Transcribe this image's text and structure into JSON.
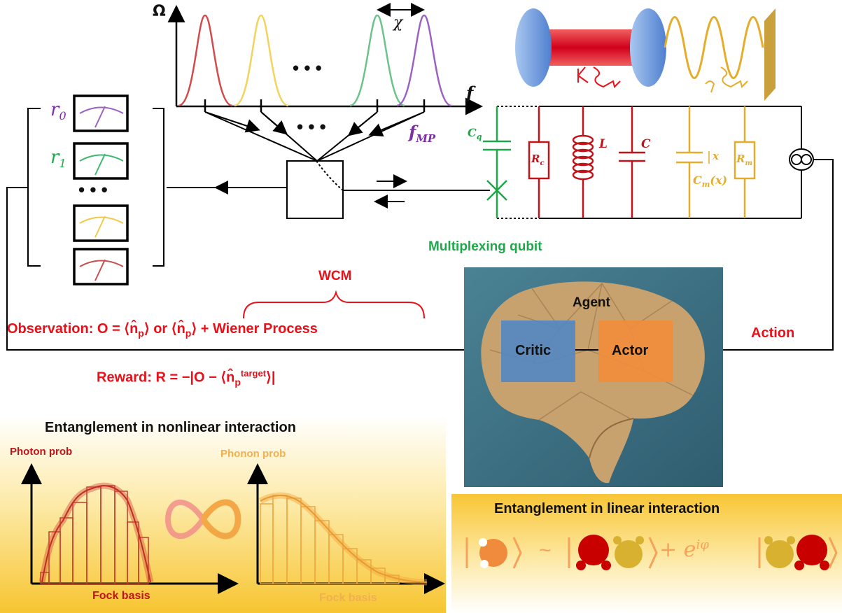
{
  "spectrum": {
    "y_axis_label": "Ω",
    "x_axis_label": "f",
    "chi_label": "χ",
    "dots": "• • •",
    "f_mp_label": "f",
    "f_mp_sub": "MP"
  },
  "meters": {
    "r0": "r",
    "r0_sub": "0",
    "r1": "r",
    "r1_sub": "1",
    "dots": "• • •"
  },
  "circuit": {
    "cq": "C",
    "cq_sub": "q",
    "rc": "R",
    "rc_sub": "c",
    "l": "L",
    "c": "C",
    "x": "x",
    "cm": "C",
    "cm_sub": "m",
    "cm_arg": "(x)",
    "rm": "R",
    "rm_sub": "m"
  },
  "labels": {
    "multiplexing_qubit": "Multiplexing qubit",
    "wcm": "WCM",
    "observation": "Observation: O = ⟨n̂",
    "observation_sub": "p",
    "observation_or": "⟩ or ⟨n̂",
    "observation_end": "⟩ + Wiener Process",
    "reward": "Reward: R = −|O − ⟨n̂",
    "reward_sup": "target",
    "reward_sub": "p",
    "reward_end": "⟩|",
    "action": "Action",
    "agent": "Agent",
    "critic": "Critic",
    "actor": "Actor",
    "kappa": "κ",
    "gamma": "γ"
  },
  "nonlinear": {
    "title": "Entanglement in nonlinear interaction",
    "photon_prob": "Photon prob",
    "phonon_prob": "Phonon prob",
    "fock_basis_1": "Fock basis",
    "fock_basis_2": "Fock basis"
  },
  "linear": {
    "title": "Entanglement in linear interaction",
    "tilde": "~",
    "plus": "+ e",
    "phase_sup": "iφ"
  },
  "colors": {
    "red": "#e8111a",
    "green": "#1fa84a",
    "orange": "#f0a030",
    "purple": "#8e44ad",
    "yellow": "#f2d35b",
    "peak_red": "#d24a4a",
    "peak_green": "#6cc38a",
    "gold": "#d8a93a",
    "blue_mirror": "#5b8fd8",
    "critic_blue": "#4f86c6",
    "actor_orange": "#f28c3a"
  },
  "icons": [
    "spectrum-peaks",
    "meter-dial",
    "beam-splitter",
    "optical-cavity",
    "circuit-inductor",
    "brain-image",
    "infinity-symbol",
    "quantum-blob"
  ]
}
